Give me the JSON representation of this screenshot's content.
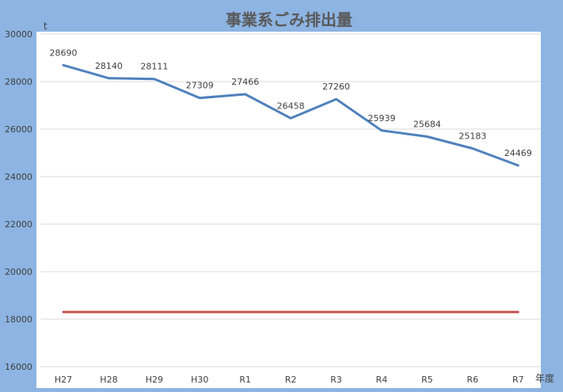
{
  "chart_data": {
    "type": "line",
    "title": "事業系ごみ排出量",
    "ylabel": "t",
    "xlabel": "年度",
    "categories": [
      "H27",
      "H28",
      "H29",
      "H30",
      "R1",
      "R2",
      "R3",
      "R4",
      "R5",
      "R6",
      "R7"
    ],
    "series": [
      {
        "values": [
          28690,
          28140,
          28111,
          27309,
          27466,
          26458,
          27260,
          25939,
          25684,
          25183,
          24469
        ],
        "color": "#4F81BD",
        "data_labels": true
      },
      {
        "values": [
          18300,
          18300,
          18300,
          18300,
          18300,
          18300,
          18300,
          18300,
          18300,
          18300,
          18300
        ],
        "color": "#C0504D",
        "data_labels": false
      }
    ],
    "ylim": [
      16000,
      30000
    ],
    "yticks": [
      16000,
      18000,
      20000,
      22000,
      24000,
      26000,
      28000,
      30000
    ],
    "grid": true,
    "legend": "none",
    "colors": {
      "chart_background": "#8DB4E2",
      "plot_background": "#FFFFFF"
    }
  }
}
